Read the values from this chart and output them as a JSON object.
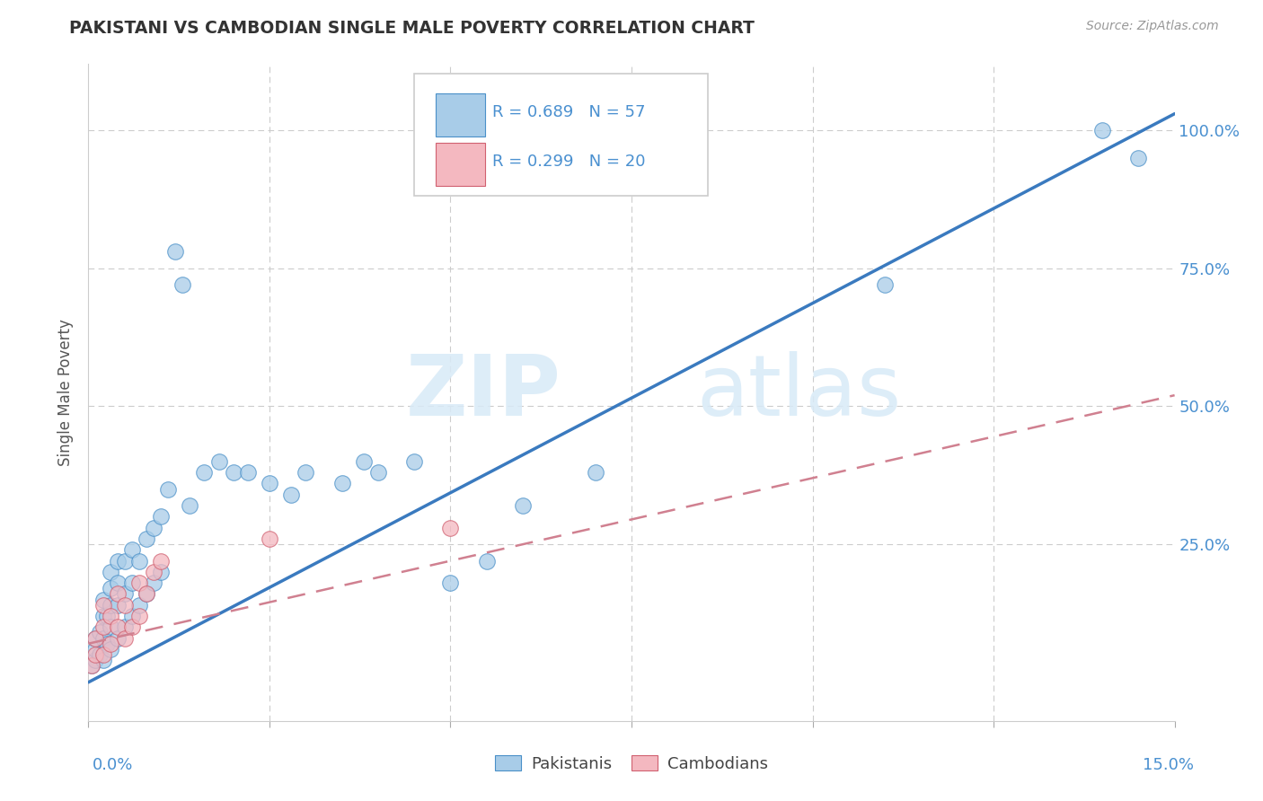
{
  "title": "PAKISTANI VS CAMBODIAN SINGLE MALE POVERTY CORRELATION CHART",
  "source": "Source: ZipAtlas.com",
  "ylabel": "Single Male Poverty",
  "xmin": 0.0,
  "xmax": 0.15,
  "ymin": -0.07,
  "ymax": 1.12,
  "legend_r1": "R = 0.689",
  "legend_n1": "N = 57",
  "legend_r2": "R = 0.299",
  "legend_n2": "N = 20",
  "color_pakistani_fill": "#a8cce8",
  "color_pakistani_edge": "#4a90c8",
  "color_cambodian_fill": "#f4b8c0",
  "color_cambodian_edge": "#d06070",
  "color_line_pakistani": "#3a7abf",
  "color_line_cambodian": "#d08090",
  "watermark_zip": "ZIP",
  "watermark_atlas": "atlas",
  "pak_line_x0": 0.0,
  "pak_line_y0": 0.0,
  "pak_line_x1": 0.15,
  "pak_line_y1": 1.03,
  "cam_line_x0": 0.0,
  "cam_line_y0": 0.07,
  "cam_line_x1": 0.15,
  "cam_line_y1": 0.52,
  "pakistani_x": [
    0.0005,
    0.001,
    0.001,
    0.001,
    0.0015,
    0.0015,
    0.002,
    0.002,
    0.002,
    0.002,
    0.0025,
    0.0025,
    0.003,
    0.003,
    0.003,
    0.003,
    0.003,
    0.004,
    0.004,
    0.004,
    0.004,
    0.005,
    0.005,
    0.005,
    0.006,
    0.006,
    0.006,
    0.007,
    0.007,
    0.008,
    0.008,
    0.009,
    0.009,
    0.01,
    0.01,
    0.011,
    0.012,
    0.013,
    0.014,
    0.016,
    0.018,
    0.02,
    0.022,
    0.025,
    0.028,
    0.03,
    0.035,
    0.038,
    0.04,
    0.045,
    0.05,
    0.055,
    0.06,
    0.07,
    0.11,
    0.14,
    0.145
  ],
  "pakistani_y": [
    0.03,
    0.04,
    0.06,
    0.08,
    0.05,
    0.09,
    0.04,
    0.08,
    0.12,
    0.15,
    0.07,
    0.12,
    0.06,
    0.1,
    0.14,
    0.17,
    0.2,
    0.08,
    0.14,
    0.18,
    0.22,
    0.1,
    0.16,
    0.22,
    0.12,
    0.18,
    0.24,
    0.14,
    0.22,
    0.16,
    0.26,
    0.18,
    0.28,
    0.2,
    0.3,
    0.35,
    0.78,
    0.72,
    0.32,
    0.38,
    0.4,
    0.38,
    0.38,
    0.36,
    0.34,
    0.38,
    0.36,
    0.4,
    0.38,
    0.4,
    0.18,
    0.22,
    0.32,
    0.38,
    0.72,
    1.0,
    0.95
  ],
  "cambodian_x": [
    0.0005,
    0.001,
    0.001,
    0.002,
    0.002,
    0.002,
    0.003,
    0.003,
    0.004,
    0.004,
    0.005,
    0.005,
    0.006,
    0.007,
    0.007,
    0.008,
    0.009,
    0.01,
    0.025,
    0.05
  ],
  "cambodian_y": [
    0.03,
    0.05,
    0.08,
    0.05,
    0.1,
    0.14,
    0.07,
    0.12,
    0.1,
    0.16,
    0.08,
    0.14,
    0.1,
    0.12,
    0.18,
    0.16,
    0.2,
    0.22,
    0.26,
    0.28
  ]
}
